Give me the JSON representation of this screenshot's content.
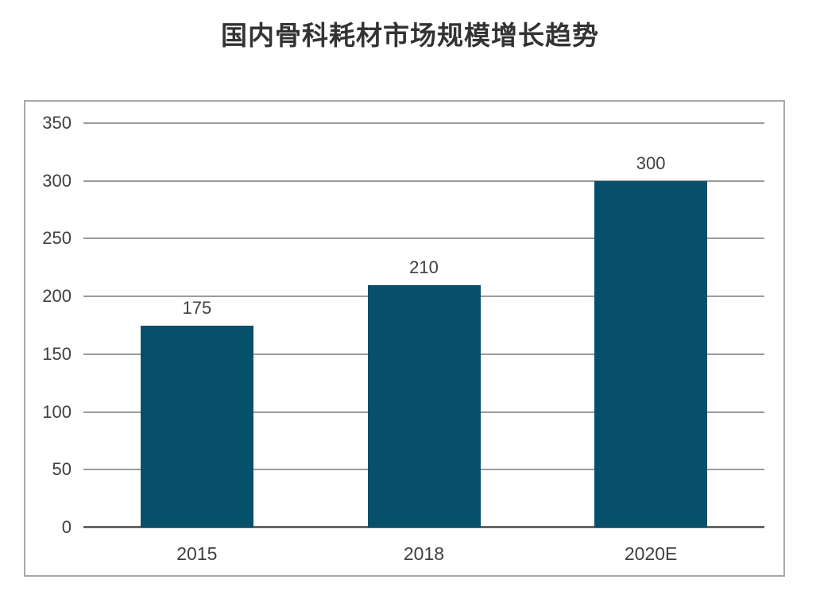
{
  "page": {
    "title": "国内骨科耗材市场规模增长趋势"
  },
  "chart_data": {
    "type": "bar",
    "title": "国内骨科耗材市场规模增长趋势",
    "categories": [
      "2015",
      "2018",
      "2020E"
    ],
    "values": [
      175,
      210,
      300
    ],
    "data_labels": [
      "175",
      "210",
      "300"
    ],
    "xlabel": "",
    "ylabel": "",
    "ylim": [
      0,
      350
    ],
    "ytick_step": 50,
    "yticks": [
      0,
      50,
      100,
      150,
      200,
      250,
      300,
      350
    ],
    "grid": true,
    "legend": "none",
    "colors": {
      "bar": "#07506C",
      "gridline": "#9B9B9B",
      "axis_line": "#666666",
      "frame_border": "#A9A9A9",
      "tick_label": "#404040",
      "value_label": "#404040",
      "title": "#333333"
    }
  }
}
